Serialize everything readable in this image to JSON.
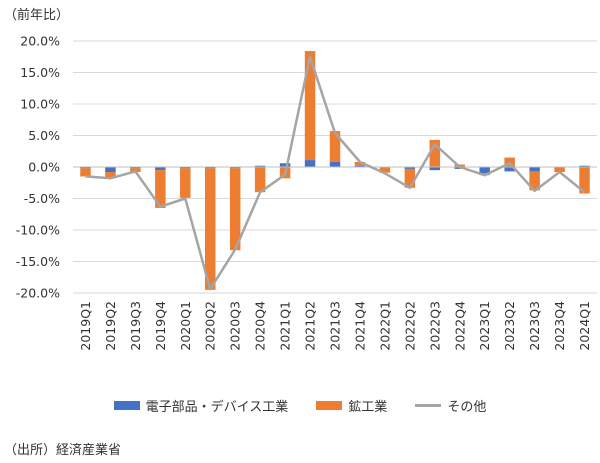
{
  "unit_label": "（前年比）",
  "source_label": "（出所）経済産業省",
  "colors": {
    "electronics": "#4472c4",
    "mining_industry": "#ed7d31",
    "other": "#a5a5a5",
    "grid": "#d9d9d9",
    "text": "#333333"
  },
  "chart_data": {
    "type": "bar",
    "stacked": true,
    "categories": [
      "2019Q1",
      "2019Q2",
      "2019Q3",
      "2019Q4",
      "2020Q1",
      "2020Q2",
      "2020Q3",
      "2020Q4",
      "2021Q1",
      "2021Q2",
      "2021Q3",
      "2021Q4",
      "2022Q1",
      "2022Q2",
      "2022Q3",
      "2022Q4",
      "2023Q1",
      "2023Q2",
      "2023Q3",
      "2023Q4",
      "2024Q1"
    ],
    "series": [
      {
        "name": "電子部品・デバイス工業",
        "type": "bar",
        "color": "#4472c4",
        "values": [
          -0.2,
          -0.8,
          -0.2,
          -0.5,
          -0.2,
          -0.2,
          -0.2,
          0.2,
          0.6,
          1.1,
          0.8,
          0.2,
          0.0,
          -0.3,
          -0.5,
          -0.3,
          -1.0,
          -0.7,
          -0.7,
          0.0,
          0.2
        ]
      },
      {
        "name": "鉱工業",
        "type": "bar",
        "color": "#ed7d31",
        "values": [
          -1.3,
          -1.0,
          -0.6,
          -6.0,
          -4.7,
          -19.3,
          -13.0,
          -4.0,
          -1.8,
          17.3,
          4.9,
          0.6,
          -0.9,
          -3.0,
          4.3,
          0.4,
          -0.3,
          1.5,
          -3.0,
          -0.8,
          -4.2
        ]
      },
      {
        "name": "その他",
        "type": "line",
        "color": "#a5a5a5",
        "values": [
          -1.5,
          -1.8,
          -0.7,
          -6.3,
          -5.0,
          -19.4,
          -13.1,
          -4.0,
          -1.2,
          17.5,
          5.4,
          0.8,
          -1.0,
          -3.3,
          3.6,
          0.0,
          -1.3,
          0.6,
          -3.8,
          -0.8,
          -4.0
        ]
      }
    ],
    "y_ticks": [
      "20.0%",
      "15.0%",
      "10.0%",
      "5.0%",
      "0.0%",
      "-5.0%",
      "-10.0%",
      "-15.0%",
      "-20.0%"
    ],
    "ylim": [
      -20,
      20
    ],
    "grid": true,
    "legend_position": "bottom"
  }
}
